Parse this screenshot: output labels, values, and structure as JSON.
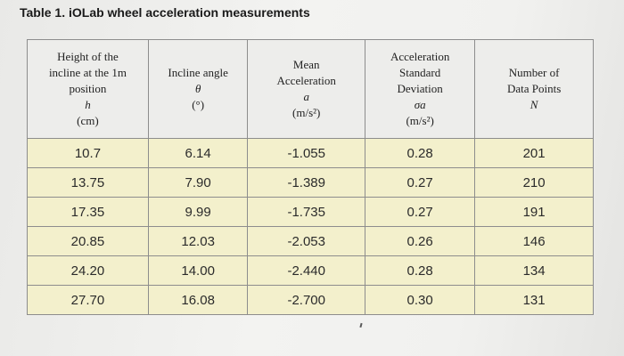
{
  "caption": "Table 1. iOLab wheel acceleration measurements",
  "headers": [
    {
      "lines": [
        "Height of the",
        "incline at the 1m",
        "position",
        "h",
        "(cm)"
      ]
    },
    {
      "lines": [
        "Incline angle",
        "θ",
        "(°)"
      ]
    },
    {
      "lines": [
        "Mean",
        "Acceleration",
        "a",
        "(m/s²)"
      ]
    },
    {
      "lines": [
        "Acceleration",
        "Standard",
        "Deviation",
        "σa",
        "(m/s²)"
      ]
    },
    {
      "lines": [
        "Number of",
        "Data Points",
        "N"
      ]
    }
  ],
  "rows": [
    [
      "10.7",
      "6.14",
      "-1.055",
      "0.28",
      "201"
    ],
    [
      "13.75",
      "7.90",
      "-1.389",
      "0.27",
      "210"
    ],
    [
      "17.35",
      "9.99",
      "-1.735",
      "0.27",
      "191"
    ],
    [
      "20.85",
      "12.03",
      "-2.053",
      "0.26",
      "146"
    ],
    [
      "24.20",
      "14.00",
      "-2.440",
      "0.28",
      "134"
    ],
    [
      "27.70",
      "16.08",
      "-2.700",
      "0.30",
      "131"
    ]
  ]
}
